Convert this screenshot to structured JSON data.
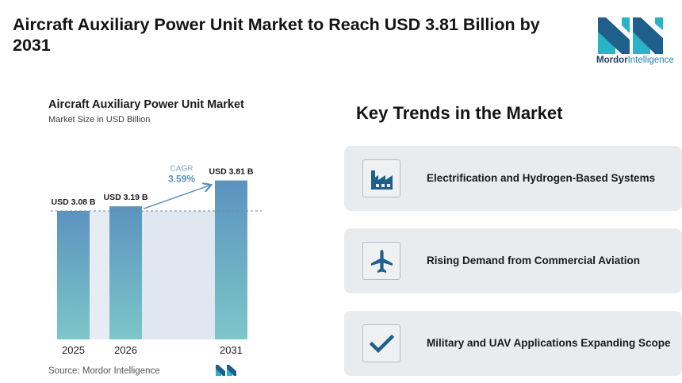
{
  "headline": "Aircraft Auxiliary Power Unit Market to Reach USD 3.81 Billion by 2031",
  "logo": {
    "word1": "Mordor",
    "word2": "Intelligence",
    "icon": "mordor-intelligence-logo"
  },
  "chart_data": {
    "type": "bar",
    "title": "Aircraft Auxiliary Power Unit Market",
    "subtitle": "Market Size in USD Billion",
    "categories": [
      "2025",
      "2026",
      "2031"
    ],
    "values": [
      3.08,
      3.19,
      3.81
    ],
    "data_labels": [
      "USD 3.08 B",
      "USD 3.19 B",
      "USD 3.81 B"
    ],
    "cagr": {
      "label": "CAGR",
      "value": "3.59%"
    },
    "bar_colors": {
      "top": "#5b93bf",
      "bottom": "#7dc6c9"
    },
    "reference_line": "dashed line at 2025 value",
    "grid": false,
    "legend": "none"
  },
  "source": "Source: Mordor Intelligence",
  "trends": {
    "title": "Key Trends in the Market",
    "items": [
      {
        "label": "Electrification and Hydrogen-Based Systems",
        "icon": "factory-icon"
      },
      {
        "label": "Rising Demand from Commercial Aviation",
        "icon": "airplane-icon"
      },
      {
        "label": "Military and UAV Applications Expanding Scope",
        "icon": "checkmark-icon"
      }
    ]
  },
  "colors": {
    "accent": "#1f5f8b",
    "card_bg": "#e9ecef",
    "logo_teal": "#29b3c6",
    "logo_navy": "#1f3d63"
  }
}
